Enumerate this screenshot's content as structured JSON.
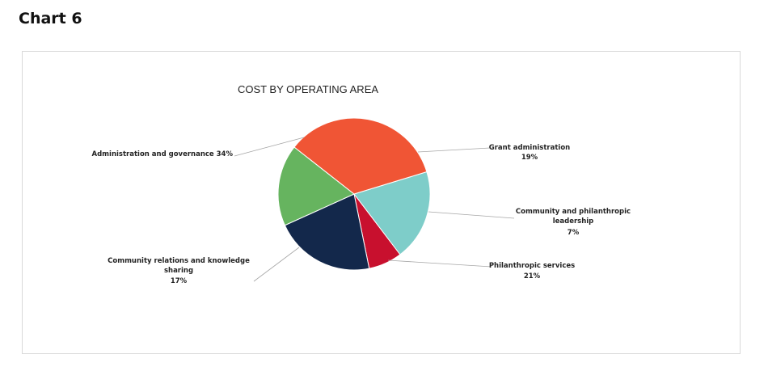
{
  "page": {
    "heading": "Chart 6"
  },
  "chart_data": {
    "type": "pie",
    "title": "COST BY OPERATING AREA",
    "slices": [
      {
        "name": "Grant administration",
        "value": 19,
        "label": "19%",
        "color": "#7ecdc9"
      },
      {
        "name": "Community and philanthropic leadership",
        "value": 7,
        "label": "7%",
        "color": "#c8102e"
      },
      {
        "name": "Philanthropic services",
        "value": 21,
        "label": "21%",
        "color": "#13284b"
      },
      {
        "name": "Community relations and knowledge sharing",
        "value": 17,
        "label": "17%",
        "color": "#66b45f"
      },
      {
        "name": "Administration and governance",
        "value": 34,
        "label": "34%",
        "color": "#f05535"
      }
    ],
    "legend": "none",
    "data_labels": "outside with leader lines"
  }
}
